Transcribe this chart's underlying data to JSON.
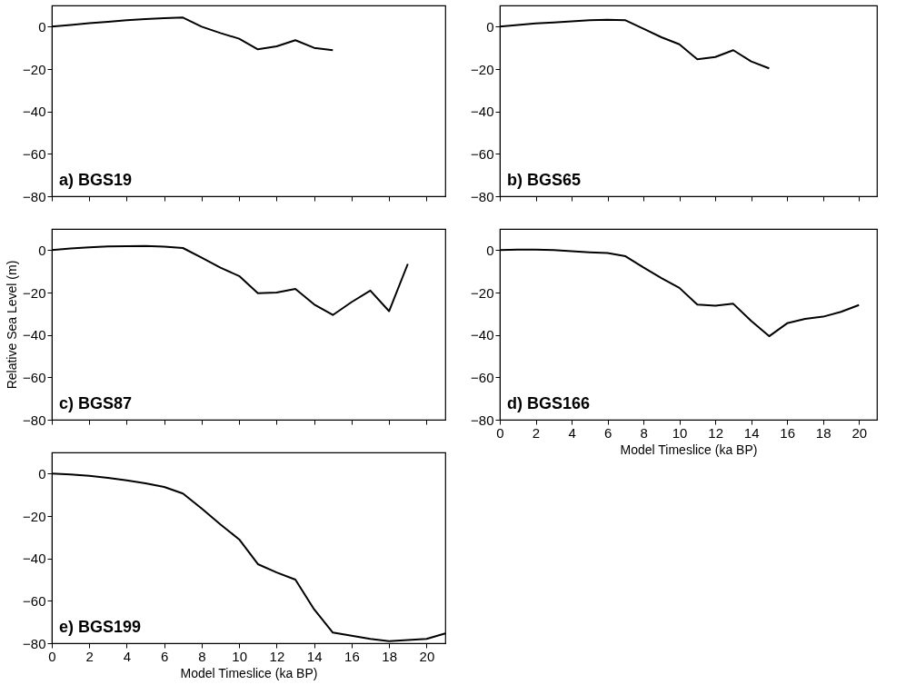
{
  "chart_data": [
    {
      "type": "line",
      "title": "a) BGS19",
      "x": [
        0,
        1,
        2,
        3,
        4,
        5,
        6,
        7,
        8,
        9,
        10,
        11,
        12,
        13,
        14,
        15
      ],
      "xlim": [
        0,
        21
      ],
      "ylim": [
        -80,
        10
      ],
      "xticks": [
        0,
        2,
        4,
        6,
        8,
        10,
        12,
        14,
        16,
        18,
        20
      ],
      "yticks": [
        -80,
        -60,
        -40,
        -20,
        0
      ],
      "tick_labels": "y",
      "grid": false,
      "series": [
        {
          "color": "#000000",
          "values": [
            0,
            0.8,
            1.6,
            2.3,
            3,
            3.6,
            4,
            4.3,
            0,
            -3,
            -5.7,
            -10.7,
            -9.3,
            -6.4,
            -10,
            -11.1
          ]
        }
      ]
    },
    {
      "type": "line",
      "title": "b) BGS65",
      "x": [
        0,
        1,
        2,
        3,
        4,
        5,
        6,
        7,
        8,
        9,
        10,
        11,
        12,
        13,
        14,
        15
      ],
      "xlim": [
        0,
        21
      ],
      "ylim": [
        -80,
        10
      ],
      "xticks": [
        0,
        2,
        4,
        6,
        8,
        10,
        12,
        14,
        16,
        18,
        20
      ],
      "yticks": [
        -80,
        -60,
        -40,
        -20,
        0
      ],
      "tick_labels": "y",
      "grid": false,
      "series": [
        {
          "color": "#000000",
          "values": [
            0,
            0.8,
            1.5,
            2,
            2.5,
            3,
            3.3,
            3,
            -1,
            -5,
            -8.3,
            -15.4,
            -14.3,
            -11.1,
            -16.4,
            -19.7
          ]
        }
      ]
    },
    {
      "type": "line",
      "title": "c) BGS87",
      "ylabel": "Relative Sea Level (m)",
      "x": [
        0,
        1,
        2,
        3,
        4,
        5,
        6,
        7,
        8,
        9,
        10,
        11,
        12,
        13,
        14,
        15,
        16,
        17,
        18,
        19
      ],
      "xlim": [
        0,
        21
      ],
      "ylim": [
        -80,
        10
      ],
      "xticks": [
        0,
        2,
        4,
        6,
        8,
        10,
        12,
        14,
        16,
        18,
        20
      ],
      "yticks": [
        -80,
        -60,
        -40,
        -20,
        0
      ],
      "tick_labels": "y",
      "grid": false,
      "series": [
        {
          "color": "#000000",
          "values": [
            0,
            0.8,
            1.3,
            1.7,
            1.9,
            2,
            1.6,
            1,
            -3.6,
            -8.3,
            -12.2,
            -20.3,
            -20,
            -18.3,
            -25.6,
            -30.6,
            -24.5,
            -19.1,
            -28.8,
            -6.5
          ]
        }
      ]
    },
    {
      "type": "line",
      "title": "d) BGS166",
      "xlabel": "Model Timeslice (ka BP)",
      "x": [
        0,
        1,
        2,
        3,
        4,
        5,
        6,
        7,
        8,
        9,
        10,
        11,
        12,
        13,
        14,
        15,
        16,
        17,
        18,
        19,
        20
      ],
      "xlim": [
        0,
        21
      ],
      "ylim": [
        -80,
        10
      ],
      "xticks": [
        0,
        2,
        4,
        6,
        8,
        10,
        12,
        14,
        16,
        18,
        20
      ],
      "yticks": [
        -80,
        -60,
        -40,
        -20,
        0
      ],
      "grid": false,
      "series": [
        {
          "color": "#000000",
          "values": [
            0,
            0.2,
            0.3,
            0,
            -0.5,
            -1,
            -1.4,
            -2.9,
            -8.2,
            -13.2,
            -17.8,
            -25.7,
            -26.2,
            -25.3,
            -33.4,
            -40.6,
            -34.5,
            -32.4,
            -31.4,
            -29.1,
            -25.9
          ]
        }
      ]
    },
    {
      "type": "line",
      "title": "e) BGS199",
      "xlabel": "Model Timeslice (ka BP)",
      "x": [
        0,
        1,
        2,
        3,
        4,
        5,
        6,
        7,
        8,
        9,
        10,
        11,
        12,
        13,
        14,
        15,
        16,
        17,
        18,
        19,
        20,
        21
      ],
      "xlim": [
        0,
        21
      ],
      "ylim": [
        -80,
        10
      ],
      "xticks": [
        0,
        2,
        4,
        6,
        8,
        10,
        12,
        14,
        16,
        18,
        20
      ],
      "yticks": [
        -80,
        -60,
        -40,
        -20,
        0
      ],
      "grid": false,
      "series": [
        {
          "color": "#000000",
          "values": [
            0,
            -0.4,
            -1,
            -2,
            -3.2,
            -4.6,
            -6.3,
            -9.4,
            -16.5,
            -24,
            -31,
            -42.7,
            -46.6,
            -50,
            -64,
            -75,
            -76.5,
            -78,
            -79,
            -78.5,
            -78,
            -75.4
          ]
        }
      ]
    }
  ]
}
